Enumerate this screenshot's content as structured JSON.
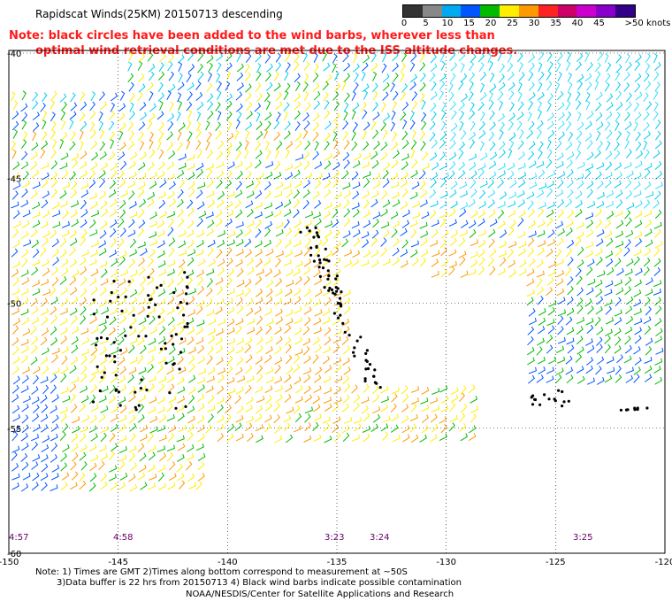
{
  "title": "Rapidscat Winds(25KM) 20150713 descending",
  "note": {
    "line1": "Note: black circles have been added to the wind barbs, wherever less than",
    "line2": "optimal wind retrieval conditions are met due to the ISS altitude changes."
  },
  "legend": {
    "labels": [
      "0",
      "5",
      "10",
      "15",
      "20",
      "25",
      "30",
      "35",
      "40",
      "45",
      ">50 knots"
    ],
    "colors": [
      "#333333",
      "#888888",
      "#00aaee",
      "#0055ff",
      "#00bb00",
      "#ffee00",
      "#ff9900",
      "#ff2222",
      "#cc0066",
      "#cc00cc",
      "#8800cc",
      "#330088"
    ]
  },
  "axes": {
    "lon_ticks": [
      "-150",
      "-145",
      "-140",
      "-135",
      "-130",
      "-125",
      "-120"
    ],
    "lat_ticks": [
      "-40",
      "-45",
      "-50",
      "-55",
      "-60"
    ]
  },
  "time_labels": [
    "4:57",
    "4:58",
    "3:23",
    "3:24",
    "3:25"
  ],
  "footer": {
    "line1": "Note: 1) Times are GMT 2)Times along bottom correspond to measurement at ~50S",
    "line2": "3)Data buffer is 22 hrs from 20150713 4) Black wind barbs indicate possible contamination",
    "line3": "NOAA/NESDIS/Center for Satellite Applications and Research"
  },
  "map_data": {
    "lon_range": [
      -150,
      -120
    ],
    "lat_range": [
      -60,
      -40
    ],
    "no_data_region": "central gap near -133 to -125, -50 to -55"
  }
}
